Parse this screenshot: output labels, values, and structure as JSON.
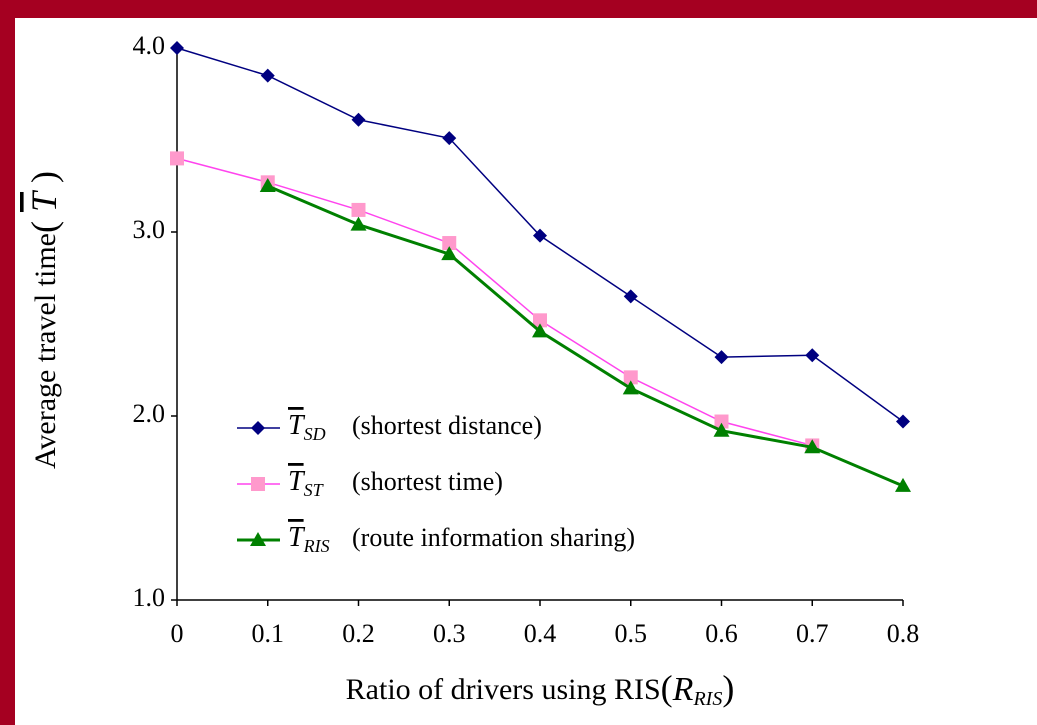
{
  "chart_data": {
    "type": "line",
    "y_label": "Average travel time",
    "y_label_symbol": "T",
    "x_label": "Ratio of drivers using RIS",
    "x_label_symbol": "R",
    "x_label_symbol_sub": "RIS",
    "x": [
      0,
      0.1,
      0.2,
      0.3,
      0.4,
      0.5,
      0.6,
      0.7,
      0.8
    ],
    "xlim": [
      0,
      0.8
    ],
    "xticks": [
      0,
      0.1,
      0.2,
      0.3,
      0.4,
      0.5,
      0.6,
      0.7,
      0.8
    ],
    "ylim": [
      1,
      4
    ],
    "yticks": [
      {
        "value": 1,
        "label": "1.0"
      },
      {
        "value": 2,
        "label": "2.0"
      },
      {
        "value": 3,
        "label": "3.0"
      },
      {
        "value": 4,
        "label": "4.0"
      }
    ],
    "series": [
      {
        "name": "T",
        "subscript": "SD",
        "description": "(shortest distance)",
        "color": "#000080",
        "marker": "diamond",
        "values": [
          4.0,
          3.85,
          3.61,
          3.51,
          2.98,
          2.65,
          2.32,
          2.33,
          1.97
        ]
      },
      {
        "name": "T",
        "subscript": "ST",
        "description": "(shortest time)",
        "color": "#ff99cc",
        "line_color": "#ff44ee",
        "marker": "square",
        "values": [
          3.4,
          3.27,
          3.12,
          2.94,
          2.52,
          2.21,
          1.97,
          1.84,
          null
        ]
      },
      {
        "name": "T",
        "subscript": "RIS",
        "description": "(route information sharing)",
        "color": "#008000",
        "marker": "triangle",
        "values": [
          null,
          3.25,
          3.04,
          2.88,
          2.46,
          2.15,
          1.92,
          1.83,
          1.62
        ]
      }
    ]
  }
}
